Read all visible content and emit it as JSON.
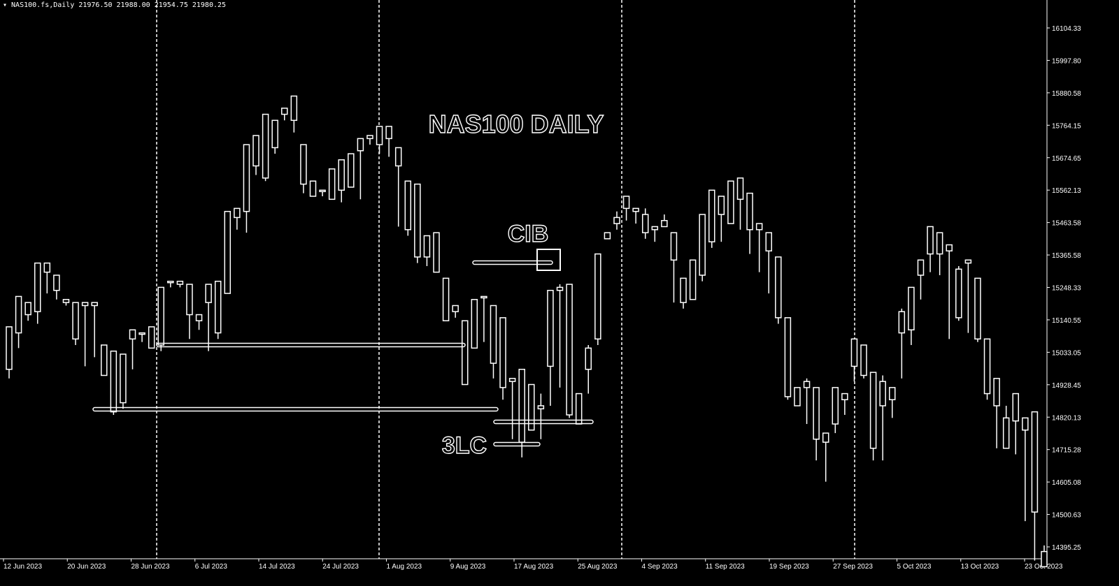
{
  "header": {
    "symbol": "NAS100.fs,Daily",
    "open": "21976.50",
    "high": "21988.00",
    "low": "21954.75",
    "close": "21980.25"
  },
  "colors": {
    "background": "#000000",
    "foreground": "#ffffff"
  },
  "chart_data": {
    "type": "candlestick",
    "title": "NAS100 DAILY",
    "annotations": [
      "CIB",
      "3LC"
    ],
    "price_labels": [
      "16104.33",
      "15997.80",
      "15880.58",
      "15764.15",
      "15674.65",
      "15562.13",
      "15463.58",
      "15365.58",
      "15248.33",
      "15140.55",
      "15033.05",
      "14928.45",
      "14820.13",
      "14715.28",
      "14605.08",
      "14500.63",
      "14395.25"
    ],
    "date_labels": [
      "12 Jun 2023",
      "20 Jun 2023",
      "28 Jun 2023",
      "6 Jul 2023",
      "14 Jul 2023",
      "24 Jul 2023",
      "1 Aug 2023",
      "9 Aug 2023",
      "17 Aug 2023",
      "25 Aug 2023",
      "4 Sep 2023",
      "11 Sep 2023",
      "19 Sep 2023",
      "27 Sep 2023",
      "5 Oct 2023",
      "13 Oct 2023",
      "23 Oct 2023"
    ],
    "candles": [
      [
        14980,
        15120,
        14950,
        15100
      ],
      [
        15100,
        15220,
        15050,
        15200
      ],
      [
        15200,
        15160,
        15140,
        15140
      ],
      [
        15170,
        15330,
        15130,
        15300
      ],
      [
        15300,
        15330,
        15230,
        15240
      ],
      [
        15240,
        15290,
        15210,
        15210
      ],
      [
        15210,
        15200,
        15190,
        15200
      ],
      [
        15200,
        15080,
        15060,
        15080
      ],
      [
        15190,
        15200,
        14990,
        15050
      ],
      [
        15190,
        15200,
        15020,
        15050
      ],
      [
        15060,
        14960,
        14990,
        14970
      ],
      [
        15040,
        14840,
        14830,
        14850
      ],
      [
        14870,
        15030,
        14850,
        15000
      ],
      [
        15080,
        15110,
        14980,
        15090
      ],
      [
        15100,
        15100,
        15070,
        15100
      ],
      [
        15120,
        15050,
        15050,
        15060
      ],
      [
        15250,
        15060,
        15040,
        15170
      ],
      [
        15270,
        15270,
        15250,
        15255
      ],
      [
        15270,
        15260,
        15250,
        15250
      ],
      [
        15260,
        15160,
        15080,
        15180
      ],
      [
        15160,
        15140,
        15110,
        15130
      ],
      [
        15200,
        15260,
        15040,
        15150
      ],
      [
        15100,
        15270,
        15080,
        15200
      ],
      [
        15500,
        15230,
        15250,
        15300
      ],
      [
        15480,
        15510,
        15440,
        15500
      ],
      [
        15720,
        15500,
        15430,
        15590
      ],
      [
        15750,
        15650,
        15620,
        15650
      ],
      [
        15820,
        15610,
        15600,
        15660
      ],
      [
        15800,
        15710,
        15690,
        15710
      ],
      [
        15840,
        15820,
        15800,
        15810
      ],
      [
        15880,
        15800,
        15760,
        15790
      ],
      [
        15720,
        15590,
        15560,
        15580
      ],
      [
        15600,
        15550,
        15560,
        15560
      ],
      [
        15570,
        15570,
        15550,
        15570
      ],
      [
        15640,
        15540,
        15540,
        15620
      ],
      [
        15670,
        15570,
        15530,
        15640
      ],
      [
        15690,
        15580,
        15590,
        15580
      ],
      [
        15740,
        15700,
        15540,
        15690
      ],
      [
        15750,
        15740,
        15720,
        15740
      ],
      [
        15780,
        15720,
        15690,
        15760
      ],
      [
        15780,
        15740,
        15680,
        15710
      ],
      [
        15710,
        15650,
        15700,
        15450
      ],
      [
        15600,
        15440,
        15420,
        15440
      ],
      [
        15590,
        15350,
        15330,
        15360
      ],
      [
        15420,
        15350,
        15320,
        15420
      ],
      [
        15430,
        15300,
        15300,
        15430
      ],
      [
        15280,
        15140,
        15270,
        15170
      ],
      [
        15190,
        15170,
        15150,
        15180
      ],
      [
        15140,
        14930,
        15040,
        15110
      ],
      [
        15210,
        15050,
        15070,
        15210
      ],
      [
        15220,
        15220,
        15070,
        15080
      ],
      [
        15190,
        15000,
        14950,
        15000
      ],
      [
        15150,
        14920,
        14880,
        14930
      ],
      [
        14940,
        14950,
        14800,
        14750
      ],
      [
        14980,
        14740,
        14690,
        14770
      ],
      [
        14930,
        14780,
        14800,
        14920
      ],
      [
        14850,
        14860,
        14900,
        14750
      ],
      [
        14990,
        15240,
        14860,
        15240
      ],
      [
        15240,
        15250,
        14920,
        15260
      ],
      [
        15260,
        14830,
        14820,
        14880
      ],
      [
        14900,
        14800,
        14820,
        14840
      ],
      [
        14980,
        15050,
        14900,
        15060
      ],
      [
        15360,
        15080,
        15060,
        15320
      ],
      [
        15410,
        15430,
        15410,
        15420
      ],
      [
        15480,
        15460,
        15440,
        15500
      ],
      [
        15550,
        15510,
        15470,
        15510
      ],
      [
        15510,
        15500,
        15460,
        15500
      ],
      [
        15490,
        15430,
        15410,
        15510
      ],
      [
        15450,
        15440,
        15440,
        15400
      ],
      [
        15450,
        15470,
        15470,
        15490
      ],
      [
        15430,
        15340,
        15200,
        15210
      ],
      [
        15280,
        15200,
        15180,
        15220
      ],
      [
        15340,
        15210,
        15290,
        15230
      ],
      [
        15490,
        15290,
        15270,
        15330
      ],
      [
        15570,
        15400,
        15460,
        15380
      ],
      [
        15550,
        15490,
        15400,
        15500
      ],
      [
        15600,
        15460,
        15460,
        15560
      ],
      [
        15610,
        15540,
        15590,
        15440
      ],
      [
        15560,
        15440,
        15410,
        15360
      ],
      [
        15460,
        15440,
        15300,
        15340
      ],
      [
        15430,
        15370,
        15230,
        15290
      ],
      [
        15350,
        15150,
        15130,
        15150
      ],
      [
        15150,
        14890,
        14880,
        14900
      ],
      [
        14920,
        14860,
        14910,
        14920
      ],
      [
        14920,
        14940,
        14800,
        14950
      ],
      [
        14920,
        14750,
        14680,
        14730
      ],
      [
        14770,
        14740,
        14610,
        14770
      ],
      [
        14920,
        14800,
        14770,
        14880
      ],
      [
        14900,
        14880,
        14830,
        14870
      ],
      [
        15080,
        14990,
        14940,
        15020
      ],
      [
        15060,
        14960,
        14950,
        14960
      ],
      [
        14970,
        14720,
        14680,
        14720
      ],
      [
        14940,
        14860,
        14680,
        14960
      ],
      [
        14920,
        14880,
        14820,
        14880
      ],
      [
        15170,
        15100,
        14950,
        15180
      ],
      [
        15250,
        15110,
        15060,
        15200
      ],
      [
        15340,
        15290,
        15210,
        15300
      ],
      [
        15450,
        15360,
        15300,
        15360
      ],
      [
        15430,
        15360,
        15290,
        15410
      ],
      [
        15370,
        15390,
        15080,
        15170
      ],
      [
        15310,
        15150,
        15140,
        15320
      ],
      [
        15330,
        15340,
        15100,
        15170
      ],
      [
        15280,
        15080,
        15070,
        15080
      ],
      [
        15080,
        14900,
        14880,
        15000
      ],
      [
        14950,
        14860,
        14720,
        14910
      ],
      [
        14820,
        14720,
        14740,
        14860
      ],
      [
        14900,
        14810,
        14700,
        14810
      ],
      [
        14820,
        14780,
        14480,
        14580
      ],
      [
        14840,
        14510,
        14410,
        14350
      ],
      [
        14380,
        14330,
        14380,
        14400
      ]
    ]
  }
}
